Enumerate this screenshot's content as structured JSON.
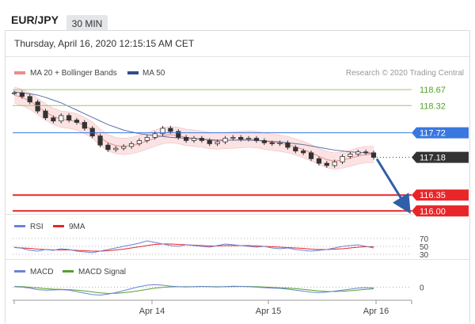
{
  "header": {
    "pair": "EUR/JPY",
    "timeframe": "30 MIN",
    "datetime": "Thursday, April 16, 2020 12:15:15 AM CET"
  },
  "legend": {
    "bollinger": "MA 20 + Bollinger Bands",
    "ma50": "MA 50",
    "credit": "Research © 2020 Trading Central"
  },
  "colors": {
    "bollinger_band": "#f9d9d9",
    "bollinger_line": "#ee8c8c",
    "ma50": "#5b6fa6",
    "resistance": "#9cc66d",
    "pivot": "#3a78e0",
    "support": "#e8262a",
    "current": "#333333",
    "arrow": "#2f5fa8",
    "rsi": "#6b83d6",
    "rsi_ma": "#e8262a",
    "macd": "#6b83d6",
    "macd_signal": "#55a22a"
  },
  "chart_data": [
    {
      "type": "line",
      "title": "EUR/JPY",
      "x_ticks": [
        "Apr 14",
        "Apr 15",
        "Apr 16"
      ],
      "ylim": [
        115.9,
        118.9
      ],
      "levels": [
        {
          "label": "118.67",
          "value": 118.67,
          "kind": "resistance"
        },
        {
          "label": "118.32",
          "value": 118.32,
          "kind": "resistance"
        },
        {
          "label": "117.72",
          "value": 117.72,
          "kind": "pivot"
        },
        {
          "label": "117.18",
          "value": 117.18,
          "kind": "current"
        },
        {
          "label": "116.35",
          "value": 116.35,
          "kind": "support"
        },
        {
          "label": "116.00",
          "value": 116.0,
          "kind": "support"
        }
      ],
      "price": [
        118.6,
        118.52,
        118.4,
        118.2,
        118.05,
        117.98,
        118.1,
        118.0,
        117.95,
        117.82,
        117.65,
        117.45,
        117.35,
        117.38,
        117.42,
        117.48,
        117.55,
        117.62,
        117.7,
        117.82,
        117.75,
        117.62,
        117.55,
        117.6,
        117.55,
        117.48,
        117.52,
        117.6,
        117.62,
        117.58,
        117.6,
        117.55,
        117.5,
        117.48,
        117.5,
        117.4,
        117.32,
        117.28,
        117.15,
        117.05,
        117.0,
        117.08,
        117.2,
        117.25,
        117.3,
        117.28,
        117.18
      ],
      "ma20": [
        118.55,
        118.5,
        118.42,
        118.3,
        118.18,
        118.08,
        118.02,
        118.0,
        117.96,
        117.88,
        117.78,
        117.62,
        117.5,
        117.44,
        117.42,
        117.44,
        117.48,
        117.54,
        117.6,
        117.66,
        117.68,
        117.66,
        117.62,
        117.6,
        117.58,
        117.55,
        117.54,
        117.55,
        117.56,
        117.57,
        117.58,
        117.57,
        117.54,
        117.51,
        117.49,
        117.46,
        117.41,
        117.35,
        117.28,
        117.2,
        117.13,
        117.1,
        117.12,
        117.16,
        117.21,
        117.24,
        117.24
      ],
      "ma50": [
        118.62,
        118.6,
        118.58,
        118.55,
        118.5,
        118.44,
        118.38,
        118.3,
        118.22,
        118.14,
        118.06,
        117.98,
        117.9,
        117.84,
        117.78,
        117.74,
        117.7,
        117.68,
        117.66,
        117.64,
        117.62,
        117.61,
        117.6,
        117.59,
        117.58,
        117.57,
        117.56,
        117.56,
        117.56,
        117.56,
        117.56,
        117.55,
        117.54,
        117.53,
        117.52,
        117.5,
        117.48,
        117.46,
        117.43,
        117.4,
        117.37,
        117.34,
        117.32,
        117.3,
        117.29,
        117.28,
        117.27
      ],
      "forecast_target": 116.0
    },
    {
      "type": "line",
      "title": "RSI",
      "series": [
        {
          "name": "RSI"
        },
        {
          "name": "9MA"
        }
      ],
      "y_ticks": [
        "70",
        "50",
        "30"
      ],
      "ylim": [
        20,
        80
      ],
      "rsi": [
        48,
        45,
        40,
        38,
        42,
        40,
        44,
        42,
        38,
        36,
        34,
        38,
        42,
        46,
        50,
        54,
        58,
        64,
        60,
        56,
        52,
        50,
        54,
        52,
        50,
        48,
        52,
        56,
        54,
        52,
        50,
        48,
        50,
        46,
        44,
        46,
        42,
        40,
        38,
        40,
        42,
        46,
        50,
        52,
        54,
        50,
        46
      ],
      "rsi_ma": [
        47,
        46,
        45,
        43,
        42,
        41,
        41,
        41,
        40,
        39,
        38,
        38,
        39,
        41,
        43,
        46,
        49,
        52,
        55,
        56,
        56,
        55,
        54,
        53,
        52,
        51,
        51,
        52,
        52,
        52,
        52,
        51,
        50,
        49,
        48,
        47,
        46,
        45,
        43,
        42,
        42,
        43,
        44,
        46,
        48,
        49,
        49
      ]
    },
    {
      "type": "line",
      "title": "MACD",
      "series": [
        {
          "name": "MACD"
        },
        {
          "name": "MACD Signal"
        }
      ],
      "y_ticks": [
        "0"
      ],
      "ylim": [
        -1,
        1
      ],
      "macd": [
        0.05,
        0.0,
        -0.1,
        -0.25,
        -0.3,
        -0.28,
        -0.25,
        -0.3,
        -0.45,
        -0.6,
        -0.75,
        -0.8,
        -0.7,
        -0.55,
        -0.35,
        -0.15,
        0.05,
        0.2,
        0.25,
        0.2,
        0.1,
        0.05,
        0.02,
        0.05,
        0.08,
        0.05,
        0.02,
        0.06,
        0.1,
        0.08,
        0.05,
        0.0,
        -0.05,
        -0.1,
        -0.12,
        -0.2,
        -0.3,
        -0.4,
        -0.5,
        -0.55,
        -0.5,
        -0.4,
        -0.3,
        -0.2,
        -0.1,
        -0.05,
        -0.08
      ],
      "signal": [
        0.08,
        0.05,
        0.0,
        -0.08,
        -0.15,
        -0.2,
        -0.22,
        -0.25,
        -0.3,
        -0.38,
        -0.48,
        -0.58,
        -0.63,
        -0.62,
        -0.56,
        -0.47,
        -0.35,
        -0.22,
        -0.1,
        -0.02,
        0.03,
        0.05,
        0.05,
        0.05,
        0.06,
        0.06,
        0.05,
        0.05,
        0.06,
        0.07,
        0.07,
        0.05,
        0.02,
        -0.02,
        -0.06,
        -0.1,
        -0.15,
        -0.22,
        -0.3,
        -0.38,
        -0.43,
        -0.44,
        -0.41,
        -0.36,
        -0.29,
        -0.22,
        -0.17
      ]
    }
  ]
}
